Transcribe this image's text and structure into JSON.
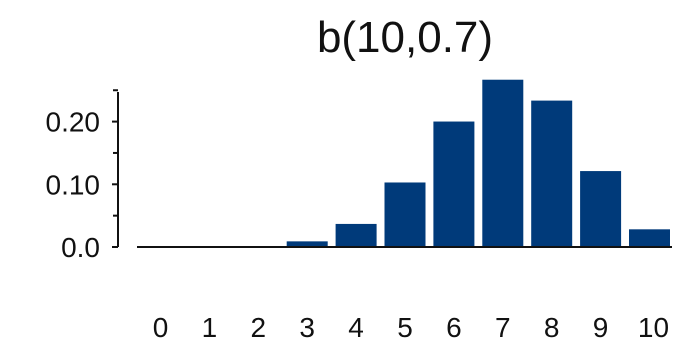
{
  "chart_data": {
    "type": "bar",
    "title": "b(10,0.7)",
    "xlabel": "",
    "ylabel": "",
    "categories": [
      "0",
      "1",
      "2",
      "3",
      "4",
      "5",
      "6",
      "7",
      "8",
      "9",
      "10"
    ],
    "values": [
      0.0,
      0.0001,
      0.0014,
      0.009,
      0.0368,
      0.1029,
      0.2001,
      0.2668,
      0.2335,
      0.1211,
      0.0282
    ],
    "ylim": [
      0,
      0.27
    ],
    "yticks": [
      0.0,
      0.1,
      0.2
    ],
    "ytick_labels": [
      "0.0",
      "0.10",
      "0.20"
    ],
    "grid": false,
    "bar_color": "#003a7a"
  }
}
